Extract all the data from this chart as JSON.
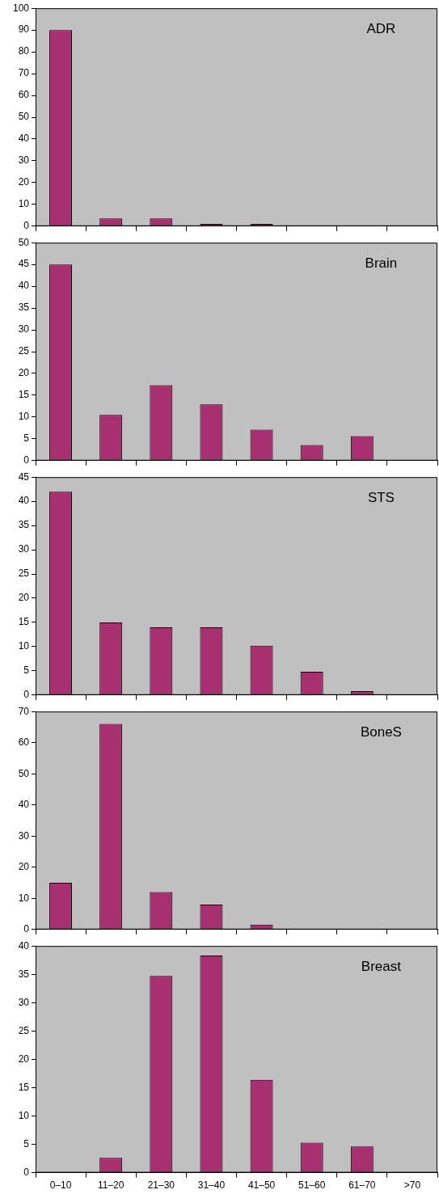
{
  "chart_data": [
    {
      "type": "bar",
      "annotations": [
        "ADR"
      ],
      "categories": [
        null,
        null,
        null,
        null,
        null,
        null,
        null,
        null
      ],
      "values": [
        90,
        3.5,
        3.5,
        1,
        1,
        0,
        0,
        0
      ],
      "color": "#a83070",
      "ylim": [
        0,
        100
      ],
      "yticks": [
        0,
        10,
        20,
        30,
        40,
        50,
        60,
        70,
        80,
        90,
        100
      ],
      "grid": false,
      "legend": false,
      "tick_labels": "y"
    },
    {
      "type": "bar",
      "annotations": [
        "Brain"
      ],
      "categories": [
        null,
        null,
        null,
        null,
        null,
        null,
        null,
        null
      ],
      "values": [
        45,
        10.5,
        17.3,
        12.9,
        7.1,
        3.6,
        5.6,
        0
      ],
      "color": "#a83070",
      "ylim": [
        0,
        50
      ],
      "yticks": [
        0,
        5,
        10,
        15,
        20,
        25,
        30,
        35,
        40,
        45,
        50
      ],
      "grid": false,
      "legend": false,
      "tick_labels": "y"
    },
    {
      "type": "bar",
      "annotations": [
        "STS"
      ],
      "categories": [
        null,
        null,
        null,
        null,
        null,
        null,
        null,
        null
      ],
      "values": [
        42,
        15,
        14,
        14,
        10.2,
        4.8,
        0.8,
        0
      ],
      "color": "#a83070",
      "ylim": [
        0,
        45
      ],
      "yticks": [
        0,
        5,
        10,
        15,
        20,
        25,
        30,
        35,
        40,
        45
      ],
      "grid": false,
      "legend": false,
      "tick_labels": "y"
    },
    {
      "type": "bar",
      "annotations": [
        "BoneS"
      ],
      "categories": [
        null,
        null,
        null,
        null,
        null,
        null,
        null,
        null
      ],
      "values": [
        15,
        66,
        12,
        8,
        1.6,
        0,
        0,
        0
      ],
      "color": "#a83070",
      "ylim": [
        0,
        70
      ],
      "yticks": [
        0,
        10,
        20,
        30,
        40,
        50,
        60,
        70
      ],
      "grid": false,
      "legend": false,
      "tick_labels": "y"
    },
    {
      "type": "bar",
      "annotations": [
        "Breast"
      ],
      "categories": [
        "0–10",
        "11–20",
        "21–30",
        "31–40",
        "41–50",
        "51–60",
        "61–70",
        ">70"
      ],
      "values": [
        0,
        2.6,
        34.7,
        38.3,
        16.4,
        5.3,
        4.6,
        0
      ],
      "color": "#a83070",
      "ylim": [
        0,
        40
      ],
      "yticks": [
        0,
        5,
        10,
        15,
        20,
        25,
        30,
        35,
        40
      ],
      "grid": false,
      "legend": false
    }
  ]
}
